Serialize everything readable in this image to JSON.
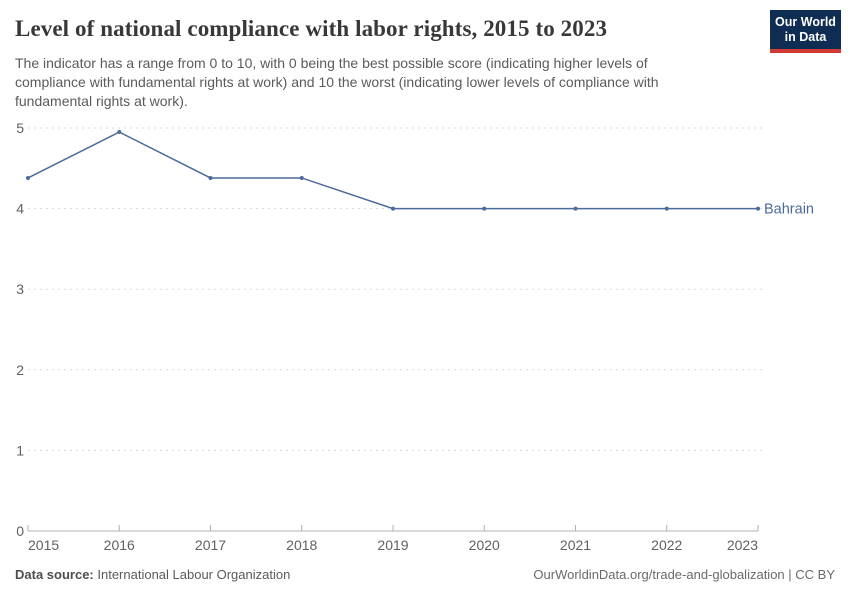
{
  "header": {
    "title": "Level of national compliance with labor rights, 2015 to 2023",
    "subtitle": "The indicator has a range from 0 to 10, with 0 being the best possible score (indicating higher levels of compliance with fundamental rights at work) and 10 the worst (indicating lower levels of compliance with fundamental rights at work).",
    "logo": {
      "line1": "Our World",
      "line2": "in Data",
      "bg_color": "#0f2c52",
      "stripe_color": "#d23a35"
    }
  },
  "chart_data": {
    "type": "line",
    "title": "Level of national compliance with labor rights, 2015 to 2023",
    "x": [
      2015,
      2016,
      2017,
      2018,
      2019,
      2020,
      2021,
      2022,
      2023
    ],
    "series": [
      {
        "name": "Bahrain",
        "values": [
          4.38,
          4.95,
          4.38,
          4.38,
          4.0,
          4.0,
          4.0,
          4.0,
          4.0
        ],
        "color": "#4c6a9c"
      }
    ],
    "xlabel": "",
    "ylabel": "",
    "ylim": [
      0,
      5
    ],
    "yticks": [
      0,
      1,
      2,
      3,
      4,
      5
    ],
    "grid": "horizontal dashed",
    "legend_position": "line-end label"
  },
  "footer": {
    "source_label": "Data source:",
    "source_value": " International Labour Organization",
    "attribution_link": "OurWorldinData.org/trade-and-globalization",
    "license": " | CC BY"
  }
}
